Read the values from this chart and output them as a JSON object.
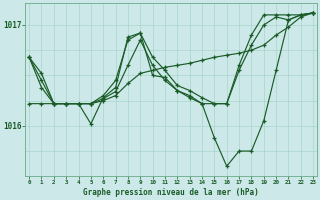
{
  "title": "Graphe pression niveau de la mer (hPa)",
  "bg_color": "#cce8e8",
  "grid_color_v": "#aad4cc",
  "grid_color_h": "#aad4cc",
  "line_color": "#1a5c28",
  "marker_color": "#1a5c28",
  "text_color": "#1a5c28",
  "series": [
    [
      1016.68,
      1016.52,
      1016.22,
      1016.22,
      1016.22,
      1016.22,
      1016.27,
      1016.34,
      1016.6,
      1016.85,
      1016.6,
      1016.45,
      1016.35,
      1016.28,
      1016.22,
      1015.88,
      1015.6,
      1015.75,
      1015.75,
      1016.05,
      1016.55,
      1017.05,
      1017.1,
      1017.12
    ],
    [
      1016.68,
      1016.45,
      1016.22,
      1016.22,
      1016.22,
      1016.02,
      1016.28,
      1016.38,
      1016.88,
      1016.92,
      1016.5,
      1016.48,
      1016.35,
      1016.3,
      1016.22,
      1016.22,
      1016.22,
      1016.6,
      1016.9,
      1017.1,
      1017.1,
      1017.1,
      1017.1,
      1017.12
    ],
    [
      1016.22,
      1016.22,
      1016.22,
      1016.22,
      1016.22,
      1016.22,
      1016.25,
      1016.3,
      1016.42,
      1016.52,
      1016.55,
      1016.58,
      1016.6,
      1016.62,
      1016.65,
      1016.68,
      1016.7,
      1016.72,
      1016.75,
      1016.8,
      1016.9,
      1016.98,
      1017.08,
      1017.12
    ],
    [
      1016.68,
      1016.38,
      1016.22,
      1016.22,
      1016.22,
      1016.22,
      1016.3,
      1016.45,
      1016.85,
      1016.92,
      1016.68,
      1016.55,
      1016.4,
      1016.35,
      1016.28,
      1016.22,
      1016.22,
      1016.55,
      1016.8,
      1017.0,
      1017.08,
      1017.05,
      1017.1,
      1017.12
    ]
  ],
  "x_ticks": [
    0,
    1,
    2,
    3,
    4,
    5,
    6,
    7,
    8,
    9,
    10,
    11,
    12,
    13,
    14,
    15,
    16,
    17,
    18,
    19,
    20,
    21,
    22,
    23
  ],
  "ylim": [
    1015.5,
    1017.22
  ],
  "y_ticks": [
    1016.0,
    1017.0
  ],
  "y_tick_labels": [
    "1016",
    "1017"
  ]
}
